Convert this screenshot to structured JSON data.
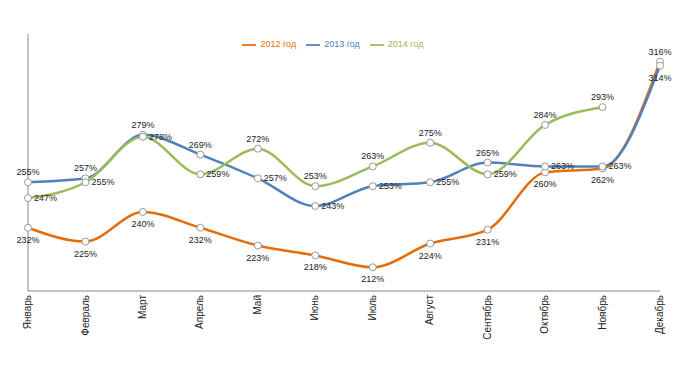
{
  "chart_data": {
    "type": "line",
    "categories": [
      "Январь",
      "Февраль",
      "Март",
      "Апрель",
      "Май",
      "Июнь",
      "Июль",
      "Август",
      "Сентябрь",
      "Октябрь",
      "Ноябрь",
      "Декабрь"
    ],
    "series": [
      {
        "name": "2012 год",
        "color": "#E46C0A",
        "values": [
          232,
          225,
          240,
          232,
          223,
          218,
          212,
          224,
          231,
          260,
          262,
          316
        ],
        "value_labels": [
          "232%",
          "225%",
          "240%",
          "232%",
          "223%",
          "218%",
          "212%",
          "224%",
          "231%",
          "260%",
          "262%",
          "316%"
        ]
      },
      {
        "name": "2013 год",
        "color": "#4F81BD",
        "values": [
          255,
          257,
          279,
          269,
          257,
          243,
          253,
          255,
          265,
          263,
          263,
          314
        ],
        "value_labels": [
          "255%",
          "257%",
          "279%",
          "269%",
          "257%",
          "243%",
          "253%",
          "255%",
          "265%",
          "263%",
          "263%",
          "314%"
        ]
      },
      {
        "name": "2014 год",
        "color": "#9BBB59",
        "values": [
          247,
          255,
          278,
          259,
          272,
          253,
          263,
          275,
          259,
          284,
          293,
          null
        ],
        "value_labels": [
          "247%",
          "255%",
          "278%",
          "259%",
          "272%",
          "253%",
          "263%",
          "275%",
          "259%",
          "284%",
          "293%",
          null
        ]
      }
    ],
    "ylim": [
      200,
      330
    ],
    "tick_labels": "x",
    "grid": false,
    "legend": "top",
    "data_labels": true,
    "marker": "circle"
  }
}
